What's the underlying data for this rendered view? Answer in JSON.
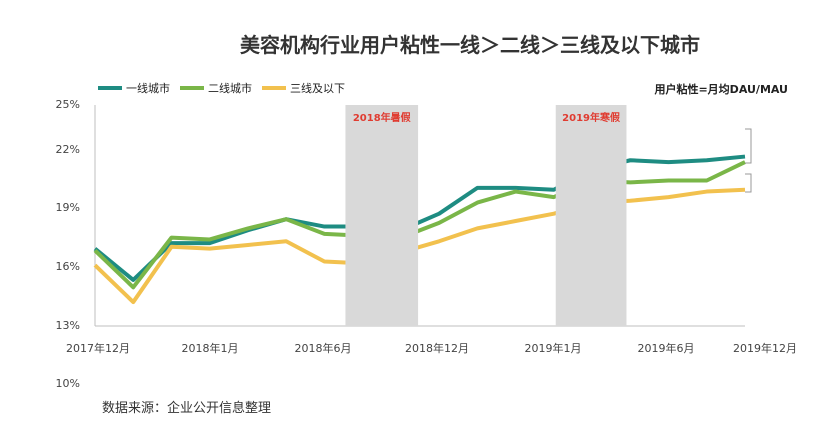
{
  "chart_data": {
    "type": "line",
    "title": "美容机构行业用户粘性一线＞二线＞三线及以下城市",
    "metric_note": "用户粘性=月均DAU/MAU",
    "source": "数据来源：企业公开信息整理",
    "ylim": [
      13,
      25
    ],
    "y_ticks": [
      "25%",
      "22%",
      "19%",
      "16%",
      "13%"
    ],
    "y_extra_tick": "10%",
    "x_ticks": [
      "2017年12月",
      "2018年1月",
      "2018年6月",
      "2018年12月",
      "2019年1月",
      "2019年6月",
      "2019年12月"
    ],
    "legend_position": "top-left",
    "bands": [
      {
        "label": "2018年暑假",
        "from": 6.55,
        "to": 8.45
      },
      {
        "label": "2019年寒假",
        "from": 12.05,
        "to": 13.9
      }
    ],
    "colors": {
      "tier1": "#1e8c82",
      "tier2": "#7ab648",
      "tier3": "#f2c14e",
      "band": "#d9d9d9",
      "band_label": "#e03c31"
    },
    "series": [
      {
        "name": "一线城市",
        "color": "#1e8c82",
        "values": [
          17.2,
          15.5,
          17.5,
          17.5,
          18.2,
          18.8,
          18.4,
          18.4,
          18.2,
          19.1,
          20.5,
          20.5,
          20.4,
          21.5,
          22.0,
          21.9,
          22.0,
          22.2
        ]
      },
      {
        "name": "二线城市",
        "color": "#7ab648",
        "values": [
          17.1,
          15.1,
          17.8,
          17.7,
          18.3,
          18.8,
          18.0,
          17.9,
          17.8,
          18.6,
          19.7,
          20.3,
          20.0,
          20.9,
          20.8,
          20.9,
          20.9,
          21.9
        ]
      },
      {
        "name": "三线及以下",
        "color": "#f2c14e",
        "values": [
          16.3,
          14.3,
          17.3,
          17.2,
          17.4,
          17.6,
          16.5,
          16.4,
          17.0,
          17.6,
          18.3,
          18.7,
          19.1,
          19.7,
          19.8,
          20.0,
          20.3,
          20.4
        ]
      }
    ]
  }
}
